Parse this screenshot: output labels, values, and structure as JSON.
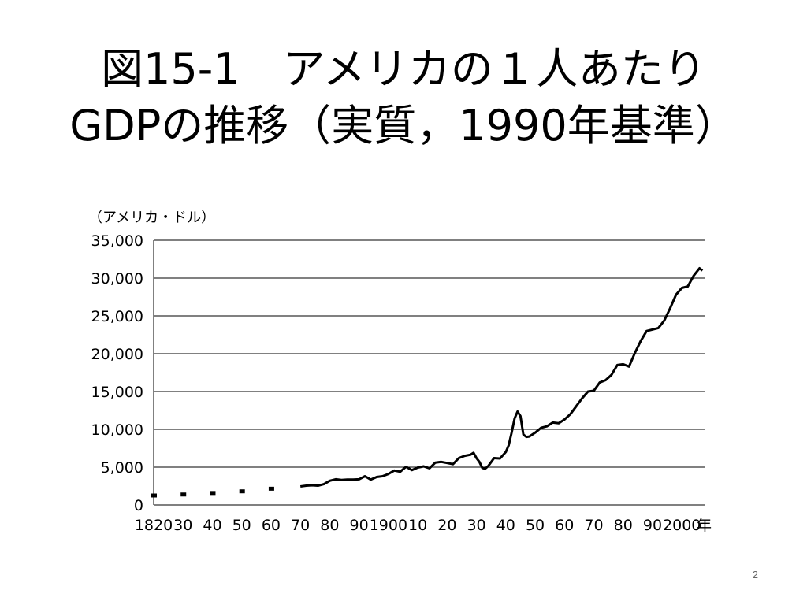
{
  "slide": {
    "title_line1": "図15-1　アメリカの１人あたり",
    "title_line2": "GDPの推移（実質，1990年基準）",
    "page_number": "2"
  },
  "chart_data": {
    "type": "line",
    "title": "図15-1　アメリカの１人あたりGDPの推移（実質，1990年基準）",
    "ylabel": "（アメリカ・ドル）",
    "xlabel": "年",
    "xlim": [
      1820,
      2008
    ],
    "ylim": [
      0,
      35000
    ],
    "y_ticks": [
      0,
      5000,
      10000,
      15000,
      20000,
      25000,
      30000,
      35000
    ],
    "y_tick_labels": [
      "0",
      "5,000",
      "10,000",
      "15,000",
      "20,000",
      "25,000",
      "30,000",
      "35,000"
    ],
    "x_ticks": [
      1820,
      1830,
      1840,
      1850,
      1860,
      1870,
      1880,
      1890,
      1900,
      1910,
      1920,
      1930,
      1940,
      1950,
      1960,
      1970,
      1980,
      1990,
      2000
    ],
    "x_tick_labels": [
      "1820",
      "30",
      "40",
      "50",
      "60",
      "70",
      "80",
      "90",
      "1900",
      "10",
      "20",
      "30",
      "40",
      "50",
      "60",
      "70",
      "80",
      "90",
      "2000"
    ],
    "x_unit_label": "年",
    "grid": "horizontal",
    "sparse_points": [
      {
        "x": 1820,
        "y": 1250
      },
      {
        "x": 1830,
        "y": 1380
      },
      {
        "x": 1840,
        "y": 1580
      },
      {
        "x": 1850,
        "y": 1800
      },
      {
        "x": 1860,
        "y": 2150
      }
    ],
    "series": [
      {
        "x": [
          1870,
          1872,
          1874,
          1876,
          1878,
          1880,
          1882,
          1884,
          1886,
          1888,
          1890,
          1892,
          1894,
          1896,
          1898,
          1900,
          1902,
          1904,
          1906,
          1908,
          1910,
          1912,
          1914,
          1916,
          1918,
          1920,
          1922,
          1924,
          1926,
          1928,
          1929,
          1930,
          1931,
          1932,
          1933,
          1934,
          1936,
          1938,
          1940,
          1941,
          1942,
          1943,
          1944,
          1945,
          1946,
          1947,
          1948,
          1950,
          1952,
          1954,
          1956,
          1958,
          1960,
          1962,
          1964,
          1966,
          1968,
          1970,
          1972,
          1974,
          1976,
          1978,
          1980,
          1982,
          1984,
          1986,
          1988,
          1990,
          1992,
          1994,
          1996,
          1998,
          2000,
          2002,
          2004,
          2006,
          2007
        ],
        "y": [
          2450,
          2550,
          2600,
          2550,
          2750,
          3200,
          3400,
          3300,
          3350,
          3350,
          3400,
          3800,
          3350,
          3700,
          3800,
          4100,
          4550,
          4400,
          5050,
          4600,
          4950,
          5100,
          4850,
          5600,
          5700,
          5550,
          5400,
          6200,
          6500,
          6650,
          6900,
          6200,
          5700,
          4900,
          4800,
          5150,
          6200,
          6150,
          7000,
          7900,
          9600,
          11450,
          12350,
          11750,
          9300,
          9000,
          9050,
          9550,
          10200,
          10400,
          10900,
          10800,
          11300,
          12000,
          13050,
          14100,
          15000,
          15100,
          16200,
          16500,
          17200,
          18500,
          18600,
          18300,
          20100,
          21700,
          23000,
          23200,
          23400,
          24400,
          26000,
          27800,
          28700,
          28900,
          30300,
          31300,
          31000
        ]
      }
    ]
  }
}
